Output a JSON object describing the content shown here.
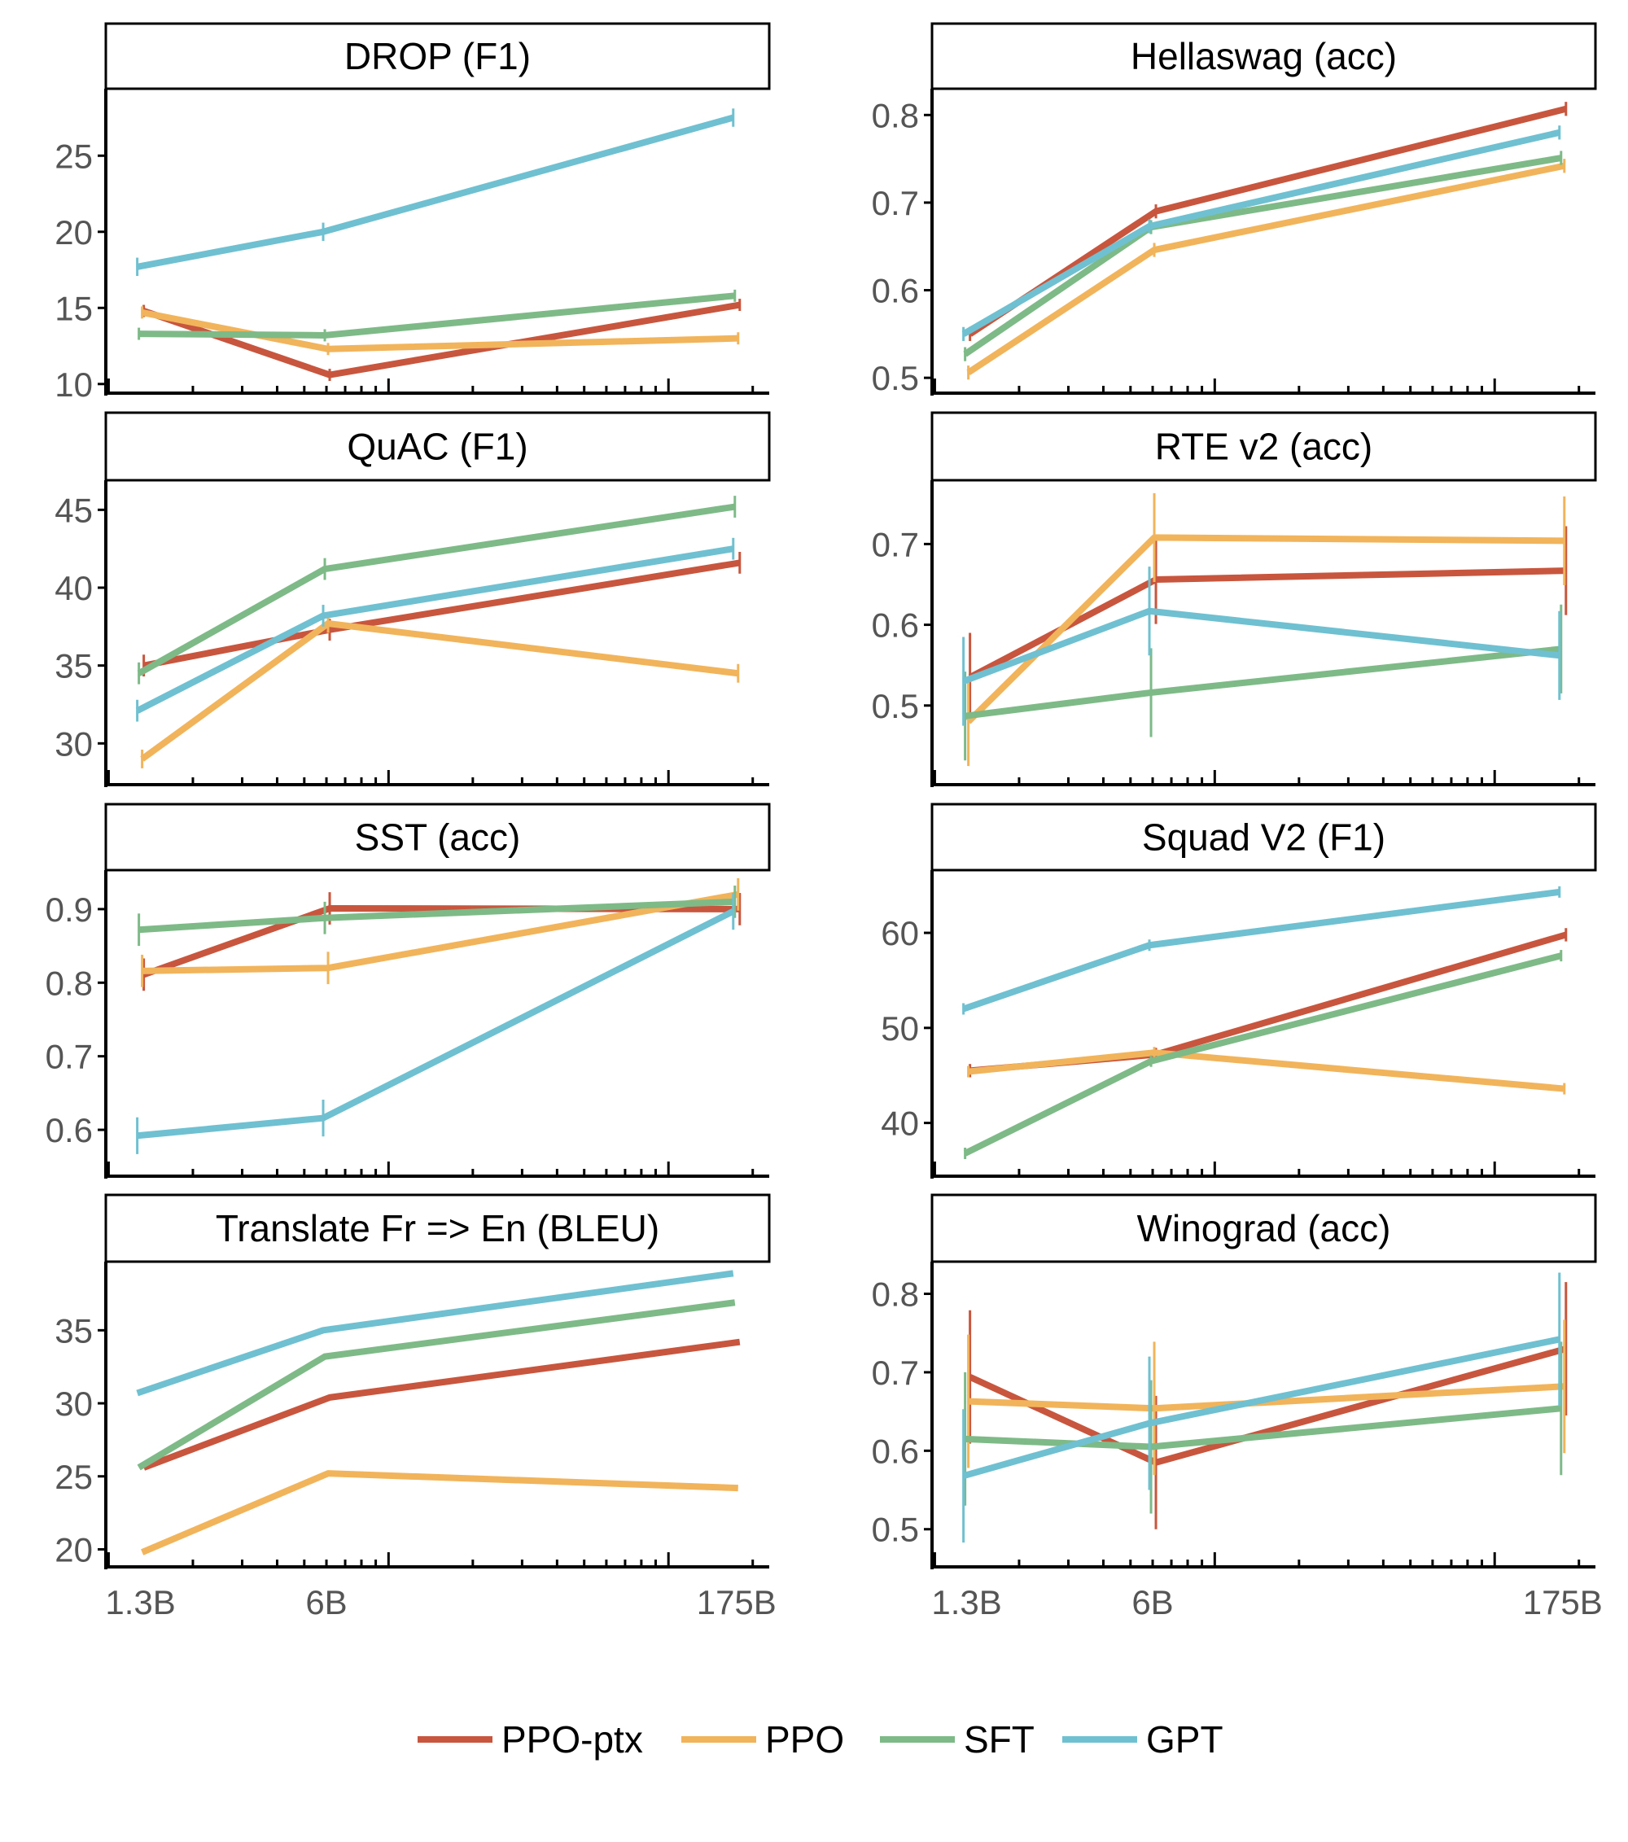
{
  "chart_data": [
    {
      "type": "line",
      "title": "DROP (F1)",
      "x": [
        "1.3B",
        "6B",
        "175B"
      ],
      "xscale": "log",
      "ylim": [
        9.4,
        29.4
      ],
      "yticks": [
        10,
        15,
        20,
        25
      ],
      "series": [
        {
          "name": "PPO-ptx",
          "values": [
            14.8,
            10.6,
            15.2
          ],
          "err": 0.4
        },
        {
          "name": "PPO",
          "values": [
            14.7,
            12.3,
            13.0
          ],
          "err": 0.4
        },
        {
          "name": "SFT",
          "values": [
            13.3,
            13.2,
            15.8
          ],
          "err": 0.4
        },
        {
          "name": "GPT",
          "values": [
            17.7,
            20.0,
            27.5
          ],
          "err": 0.6
        }
      ]
    },
    {
      "type": "line",
      "title": "Hellaswag (acc)",
      "x": [
        "1.3B",
        "6B",
        "175B"
      ],
      "xscale": "log",
      "ylim": [
        0.4825,
        0.83
      ],
      "yticks": [
        0.5,
        0.6,
        0.7,
        0.8
      ],
      "series": [
        {
          "name": "PPO-ptx",
          "values": [
            0.55,
            0.69,
            0.807
          ],
          "err": 0.008
        },
        {
          "name": "PPO",
          "values": [
            0.506,
            0.646,
            0.742
          ],
          "err": 0.008
        },
        {
          "name": "SFT",
          "values": [
            0.527,
            0.672,
            0.751
          ],
          "err": 0.008
        },
        {
          "name": "GPT",
          "values": [
            0.55,
            0.673,
            0.78
          ],
          "err": 0.008
        }
      ]
    },
    {
      "type": "line",
      "title": "QuAC (F1)",
      "x": [
        "1.3B",
        "6B",
        "175B"
      ],
      "xscale": "log",
      "ylim": [
        27.35,
        46.9
      ],
      "yticks": [
        30,
        35,
        40,
        45
      ],
      "series": [
        {
          "name": "PPO-ptx",
          "values": [
            35.0,
            37.3,
            41.6
          ],
          "err": 0.7
        },
        {
          "name": "PPO",
          "values": [
            29.0,
            37.7,
            34.5
          ],
          "err": 0.6
        },
        {
          "name": "SFT",
          "values": [
            34.5,
            41.2,
            45.2
          ],
          "err": 0.7
        },
        {
          "name": "GPT",
          "values": [
            32.1,
            38.2,
            42.5
          ],
          "err": 0.7
        }
      ]
    },
    {
      "type": "line",
      "title": "RTE v2 (acc)",
      "x": [
        "1.3B",
        "6B",
        "175B"
      ],
      "xscale": "log",
      "ylim": [
        0.402,
        0.779
      ],
      "yticks": [
        0.5,
        0.6,
        0.7
      ],
      "series": [
        {
          "name": "PPO-ptx",
          "values": [
            0.535,
            0.656,
            0.667
          ],
          "err": 0.055
        },
        {
          "name": "PPO",
          "values": [
            0.48,
            0.708,
            0.704
          ],
          "err": 0.055
        },
        {
          "name": "SFT",
          "values": [
            0.487,
            0.516,
            0.57
          ],
          "err": 0.055
        },
        {
          "name": "GPT",
          "values": [
            0.53,
            0.617,
            0.562
          ],
          "err": 0.055
        }
      ]
    },
    {
      "type": "line",
      "title": "SST (acc)",
      "x": [
        "1.3B",
        "6B",
        "175B"
      ],
      "xscale": "log",
      "ylim": [
        0.537,
        0.953
      ],
      "yticks": [
        0.6,
        0.7,
        0.8,
        0.9
      ],
      "series": [
        {
          "name": "PPO-ptx",
          "values": [
            0.811,
            0.901,
            0.9
          ],
          "err": 0.022
        },
        {
          "name": "PPO",
          "values": [
            0.816,
            0.82,
            0.92
          ],
          "err": 0.022
        },
        {
          "name": "SFT",
          "values": [
            0.872,
            0.888,
            0.91
          ],
          "err": 0.022
        },
        {
          "name": "GPT",
          "values": [
            0.592,
            0.616,
            0.897
          ],
          "err": 0.025
        }
      ]
    },
    {
      "type": "line",
      "title": "Squad V2 (F1)",
      "x": [
        "1.3B",
        "6B",
        "175B"
      ],
      "xscale": "log",
      "ylim": [
        34.4,
        66.6
      ],
      "yticks": [
        40,
        50,
        60
      ],
      "series": [
        {
          "name": "PPO-ptx",
          "values": [
            45.5,
            47.2,
            59.8
          ],
          "err": 0.7
        },
        {
          "name": "PPO",
          "values": [
            45.4,
            47.4,
            43.6
          ],
          "err": 0.6
        },
        {
          "name": "SFT",
          "values": [
            36.8,
            46.5,
            57.6
          ],
          "err": 0.6
        },
        {
          "name": "GPT",
          "values": [
            52.0,
            58.7,
            64.3
          ],
          "err": 0.6
        }
      ]
    },
    {
      "type": "line",
      "title": "Translate Fr => En (BLEU)",
      "x": [
        "1.3B",
        "6B",
        "175B"
      ],
      "xscale": "log",
      "ylim": [
        18.8,
        39.7
      ],
      "yticks": [
        20,
        25,
        30,
        35
      ],
      "series": [
        {
          "name": "PPO-ptx",
          "values": [
            25.6,
            30.4,
            34.2
          ],
          "err": 0
        },
        {
          "name": "PPO",
          "values": [
            19.8,
            25.2,
            24.2
          ],
          "err": 0
        },
        {
          "name": "SFT",
          "values": [
            25.6,
            33.2,
            36.9
          ],
          "err": 0
        },
        {
          "name": "GPT",
          "values": [
            30.7,
            35.0,
            38.9
          ],
          "err": 0
        }
      ]
    },
    {
      "type": "line",
      "title": "Winograd (acc)",
      "x": [
        "1.3B",
        "6B",
        "175B"
      ],
      "xscale": "log",
      "ylim": [
        0.452,
        0.841
      ],
      "yticks": [
        0.5,
        0.6,
        0.7,
        0.8
      ],
      "series": [
        {
          "name": "PPO-ptx",
          "values": [
            0.694,
            0.585,
            0.73
          ],
          "err": 0.085
        },
        {
          "name": "PPO",
          "values": [
            0.663,
            0.654,
            0.682
          ],
          "err": 0.085
        },
        {
          "name": "SFT",
          "values": [
            0.615,
            0.605,
            0.654
          ],
          "err": 0.085
        },
        {
          "name": "GPT",
          "values": [
            0.568,
            0.635,
            0.742
          ],
          "err": 0.085
        }
      ]
    }
  ],
  "legend": {
    "placement": "bottom",
    "items": [
      "PPO-ptx",
      "PPO",
      "SFT",
      "GPT"
    ]
  },
  "colors": {
    "PPO-ptx": "#C8553D",
    "PPO": "#F2B45A",
    "SFT": "#7DBA87",
    "GPT": "#6FC0D0"
  }
}
